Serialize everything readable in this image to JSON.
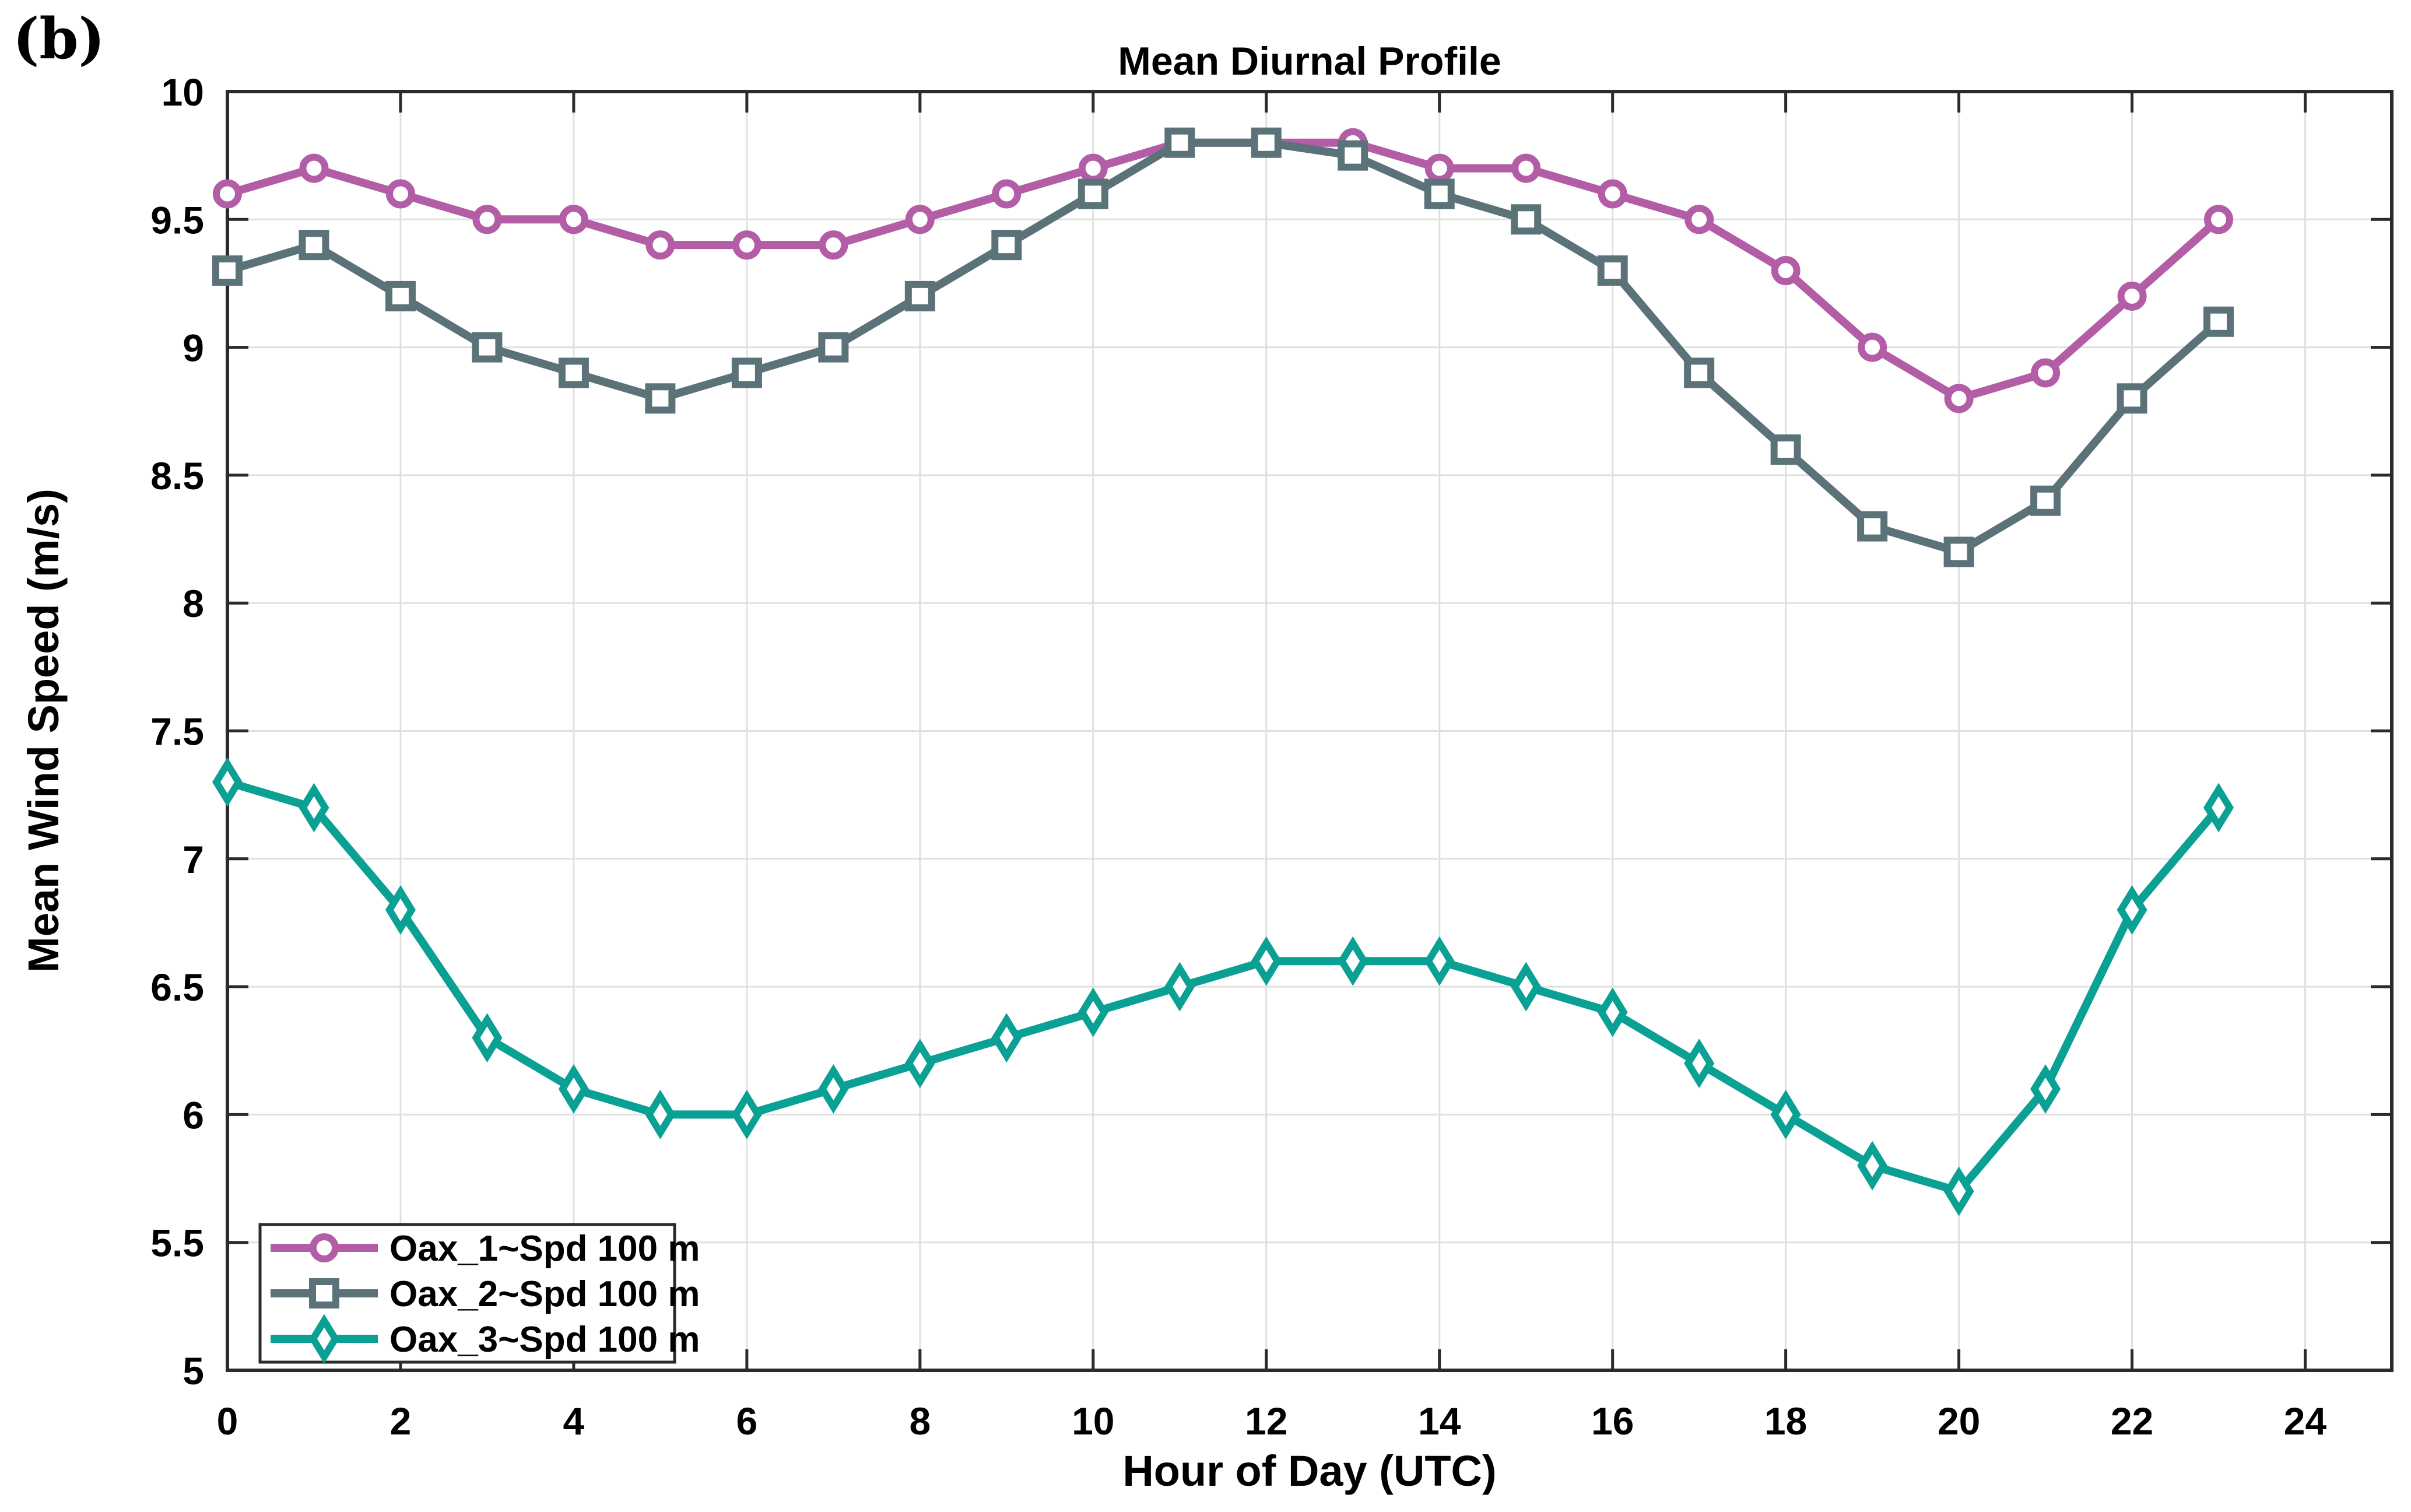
{
  "panel_label": "(b)",
  "chart_data": {
    "type": "line",
    "title": "Mean Diurnal Profile",
    "xlabel": "Hour of Day (UTC)",
    "ylabel": "Mean Wind Speed (m/s)",
    "xlim": [
      0,
      25
    ],
    "ylim": [
      5,
      10
    ],
    "xticks": [
      0,
      2,
      4,
      6,
      8,
      10,
      12,
      14,
      16,
      18,
      20,
      22,
      24
    ],
    "yticks": [
      5,
      5.5,
      6,
      6.5,
      7,
      7.5,
      8,
      8.5,
      9,
      9.5,
      10
    ],
    "grid": true,
    "legend_position": "bottom-left",
    "x": [
      0,
      1,
      2,
      3,
      4,
      5,
      6,
      7,
      8,
      9,
      10,
      11,
      12,
      13,
      14,
      15,
      16,
      17,
      18,
      19,
      20,
      21,
      22,
      23
    ],
    "series": [
      {
        "name": "Oax_1~Spd 100 m",
        "marker": "circle",
        "color": "#b25da6",
        "values": [
          9.6,
          9.7,
          9.6,
          9.5,
          9.5,
          9.4,
          9.4,
          9.4,
          9.5,
          9.6,
          9.7,
          9.8,
          9.8,
          9.8,
          9.7,
          9.7,
          9.6,
          9.5,
          9.3,
          9.0,
          8.8,
          8.9,
          9.2,
          9.5
        ]
      },
      {
        "name": "Oax_2~Spd 100 m",
        "marker": "square",
        "color": "#5b7278",
        "values": [
          9.3,
          9.4,
          9.2,
          9.0,
          8.9,
          8.8,
          8.9,
          9.0,
          9.2,
          9.4,
          9.6,
          9.8,
          9.8,
          9.75,
          9.6,
          9.5,
          9.3,
          8.9,
          8.6,
          8.3,
          8.2,
          8.4,
          8.8,
          9.1
        ]
      },
      {
        "name": "Oax_3~Spd 100 m",
        "marker": "diamond",
        "color": "#0aa093",
        "values": [
          7.3,
          7.2,
          6.8,
          6.3,
          6.1,
          6.0,
          6.0,
          6.1,
          6.2,
          6.3,
          6.4,
          6.5,
          6.6,
          6.6,
          6.6,
          6.5,
          6.4,
          6.2,
          6.0,
          5.8,
          5.7,
          6.1,
          6.8,
          7.2
        ]
      }
    ],
    "colors": {
      "background": "#ffffff",
      "grid": "#e0e0e0",
      "axis": "#2b2b2b",
      "text": "#000000"
    }
  }
}
